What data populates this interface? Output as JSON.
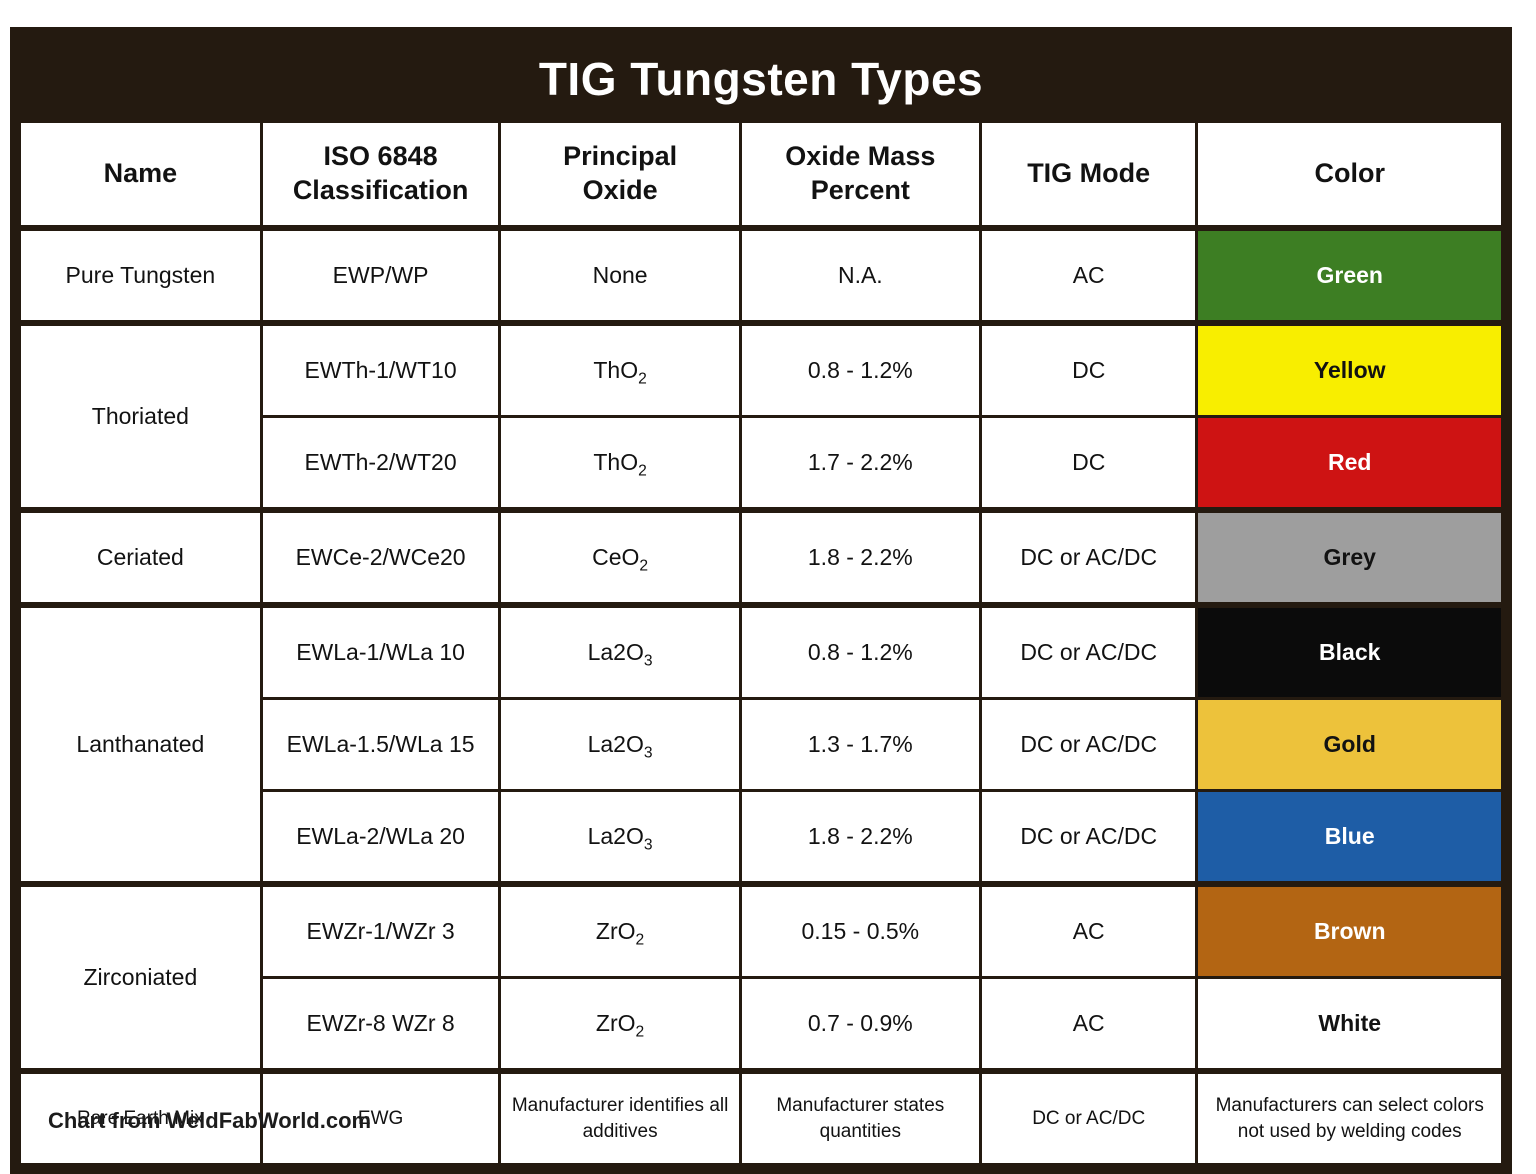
{
  "chart_data": {
    "type": "table",
    "title": "TIG Tungsten Types",
    "footer_credit": "Chart from WeldFabWorld.com",
    "columns": [
      "Name",
      "ISO 6848\nClassification",
      "Principal\nOxide",
      "Oxide Mass\nPercent",
      "TIG Mode",
      "Color"
    ],
    "rows": [
      {
        "name": "Pure Tungsten",
        "name_rowspan": 1,
        "group_start": true,
        "iso": "EWP/WP",
        "oxide": "None",
        "oxide_sub": "",
        "mass": "N.A.",
        "mode": "AC",
        "color_label": "Green",
        "color_bg": "#3D7E23",
        "color_text": "#FFFFFF",
        "small": false
      },
      {
        "name": "Thoriated",
        "name_rowspan": 2,
        "group_start": true,
        "iso": "EWTh-1/WT10",
        "oxide": "ThO",
        "oxide_sub": "2",
        "mass": "0.8 - 1.2%",
        "mode": "DC",
        "color_label": "Yellow",
        "color_bg": "#F8EE00",
        "color_text": "#121212",
        "small": false
      },
      {
        "group_start": false,
        "iso": "EWTh-2/WT20",
        "oxide": "ThO",
        "oxide_sub": "2",
        "mass": "1.7 - 2.2%",
        "mode": "DC",
        "color_label": "Red",
        "color_bg": "#CE1313",
        "color_text": "#FFFFFF",
        "small": false
      },
      {
        "name": "Ceriated",
        "name_rowspan": 1,
        "group_start": true,
        "iso": "EWCe-2/WCe20",
        "oxide": "CeO",
        "oxide_sub": "2",
        "mass": "1.8 - 2.2%",
        "mode": "DC or AC/DC",
        "color_label": "Grey",
        "color_bg": "#9E9E9E",
        "color_text": "#121212",
        "small": false
      },
      {
        "name": "Lanthanated",
        "name_rowspan": 3,
        "group_start": true,
        "iso": "EWLa-1/WLa 10",
        "oxide": "La2O",
        "oxide_sub": "3",
        "mass": "0.8 - 1.2%",
        "mode": "DC or AC/DC",
        "color_label": "Black",
        "color_bg": "#0B0B0B",
        "color_text": "#FFFFFF",
        "small": false
      },
      {
        "group_start": false,
        "iso": "EWLa-1.5/WLa 15",
        "oxide": "La2O",
        "oxide_sub": "3",
        "mass": "1.3 - 1.7%",
        "mode": "DC or AC/DC",
        "color_label": "Gold",
        "color_bg": "#EDC23B",
        "color_text": "#121212",
        "small": false
      },
      {
        "group_start": false,
        "iso": "EWLa-2/WLa 20",
        "oxide": "La2O",
        "oxide_sub": "3",
        "mass": "1.8 - 2.2%",
        "mode": "DC or AC/DC",
        "color_label": "Blue",
        "color_bg": "#1E5DA6",
        "color_text": "#FFFFFF",
        "small": false
      },
      {
        "name": "Zirconiated",
        "name_rowspan": 2,
        "group_start": true,
        "iso": "EWZr-1/WZr 3",
        "oxide": "ZrO",
        "oxide_sub": "2",
        "mass": "0.15 - 0.5%",
        "mode": "AC",
        "color_label": "Brown",
        "color_bg": "#B36513",
        "color_text": "#FFFFFF",
        "small": false
      },
      {
        "group_start": false,
        "iso": "EWZr-8 WZr 8",
        "oxide": "ZrO",
        "oxide_sub": "2",
        "mass": "0.7 - 0.9%",
        "mode": "AC",
        "color_label": "White",
        "color_bg": "#FFFFFF",
        "color_text": "#121212",
        "small": false
      },
      {
        "name": "Rare Earth Mix",
        "name_rowspan": 1,
        "group_start": true,
        "iso": "EWG",
        "oxide": "Manufacturer identifies all additives",
        "oxide_sub": "",
        "mass": "Manufacturer states quantities",
        "mode": "DC or AC/DC",
        "color_label": "Manufacturers can select colors not used by welding codes",
        "color_bg": "#FFFFFF",
        "color_text": "#121212",
        "small": true
      }
    ],
    "layout": {
      "band_bg": "#241A10",
      "border_color": "#241A10",
      "text_color": "#121212",
      "header_bg": "#FFFFFF",
      "legend_position": "none",
      "grid": "on"
    }
  }
}
